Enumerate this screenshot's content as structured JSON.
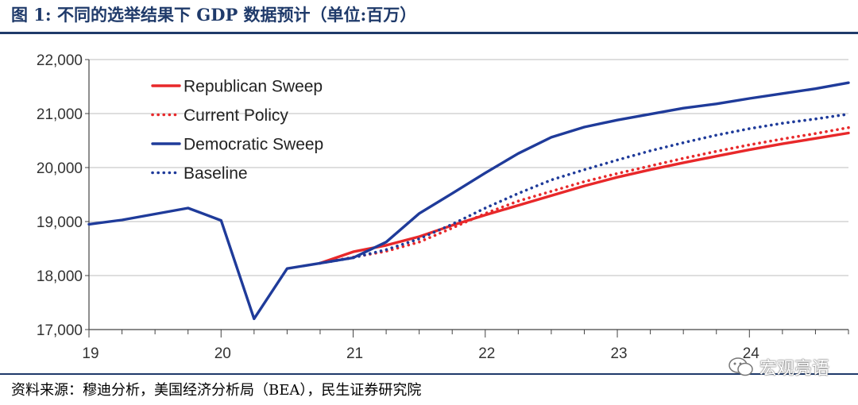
{
  "header": {
    "title": "图 1:  不同的选举结果下 GDP 数据预计（单位:百万）"
  },
  "footer": {
    "source": "资料来源：穆迪分析，美国经济分析局（BEA），民生证券研究院",
    "watermark": "宏观亮语"
  },
  "chart_data": {
    "type": "line",
    "title": "不同的选举结果下 GDP 数据预计（单位:百万）",
    "xlabel": "",
    "ylabel": "",
    "x_ticks": [
      {
        "value": 19,
        "label": "19"
      },
      {
        "value": 20,
        "label": "20"
      },
      {
        "value": 21,
        "label": "21"
      },
      {
        "value": 22,
        "label": "22"
      },
      {
        "value": 23,
        "label": "23"
      },
      {
        "value": 24,
        "label": "24"
      }
    ],
    "xlim": [
      19,
      24.75
    ],
    "ylim": [
      17000,
      22000
    ],
    "y_ticks": [
      {
        "value": 17000,
        "label": "17,000"
      },
      {
        "value": 18000,
        "label": "18,000"
      },
      {
        "value": 19000,
        "label": "19,000"
      },
      {
        "value": 20000,
        "label": "20,000"
      },
      {
        "value": 21000,
        "label": "21,000"
      },
      {
        "value": 22000,
        "label": "22,000"
      }
    ],
    "grid": true,
    "legend_position": "top-left",
    "series": [
      {
        "name": "Republican Sweep",
        "color": "#e8282a",
        "style": "solid",
        "points": [
          [
            20.75,
            18230
          ],
          [
            21.0,
            18440
          ],
          [
            21.25,
            18560
          ],
          [
            21.5,
            18720
          ],
          [
            21.75,
            18930
          ],
          [
            22.0,
            19120
          ],
          [
            22.25,
            19300
          ],
          [
            22.5,
            19480
          ],
          [
            22.75,
            19660
          ],
          [
            23.0,
            19820
          ],
          [
            23.25,
            19960
          ],
          [
            23.5,
            20090
          ],
          [
            23.75,
            20210
          ],
          [
            24.0,
            20330
          ],
          [
            24.25,
            20440
          ],
          [
            24.5,
            20540
          ],
          [
            24.75,
            20640
          ]
        ]
      },
      {
        "name": "Current Policy",
        "color": "#e8282a",
        "style": "dotted",
        "points": [
          [
            20.75,
            18230
          ],
          [
            21.0,
            18340
          ],
          [
            21.25,
            18450
          ],
          [
            21.5,
            18620
          ],
          [
            21.75,
            18880
          ],
          [
            22.0,
            19150
          ],
          [
            22.25,
            19380
          ],
          [
            22.5,
            19560
          ],
          [
            22.75,
            19740
          ],
          [
            23.0,
            19890
          ],
          [
            23.25,
            20030
          ],
          [
            23.5,
            20170
          ],
          [
            23.75,
            20300
          ],
          [
            24.0,
            20420
          ],
          [
            24.25,
            20530
          ],
          [
            24.5,
            20630
          ],
          [
            24.75,
            20740
          ]
        ]
      },
      {
        "name": "Democratic Sweep",
        "color": "#1f3b9a",
        "style": "solid",
        "points": [
          [
            19.0,
            18950
          ],
          [
            19.25,
            19030
          ],
          [
            19.5,
            19140
          ],
          [
            19.75,
            19250
          ],
          [
            20.0,
            19020
          ],
          [
            20.25,
            17200
          ],
          [
            20.5,
            18130
          ],
          [
            20.75,
            18230
          ],
          [
            21.0,
            18330
          ],
          [
            21.25,
            18620
          ],
          [
            21.5,
            19150
          ],
          [
            21.75,
            19520
          ],
          [
            22.0,
            19900
          ],
          [
            22.25,
            20260
          ],
          [
            22.5,
            20560
          ],
          [
            22.75,
            20750
          ],
          [
            23.0,
            20880
          ],
          [
            23.25,
            20990
          ],
          [
            23.5,
            21100
          ],
          [
            23.75,
            21180
          ],
          [
            24.0,
            21280
          ],
          [
            24.25,
            21370
          ],
          [
            24.5,
            21460
          ],
          [
            24.75,
            21570
          ]
        ]
      },
      {
        "name": "Baseline",
        "color": "#1f3b9a",
        "style": "dotted",
        "points": [
          [
            20.75,
            18230
          ],
          [
            21.0,
            18330
          ],
          [
            21.25,
            18480
          ],
          [
            21.5,
            18680
          ],
          [
            21.75,
            18950
          ],
          [
            22.0,
            19250
          ],
          [
            22.25,
            19520
          ],
          [
            22.5,
            19770
          ],
          [
            22.75,
            19960
          ],
          [
            23.0,
            20140
          ],
          [
            23.25,
            20310
          ],
          [
            23.5,
            20460
          ],
          [
            23.75,
            20600
          ],
          [
            24.0,
            20720
          ],
          [
            24.25,
            20820
          ],
          [
            24.5,
            20900
          ],
          [
            24.75,
            20990
          ]
        ]
      }
    ]
  }
}
